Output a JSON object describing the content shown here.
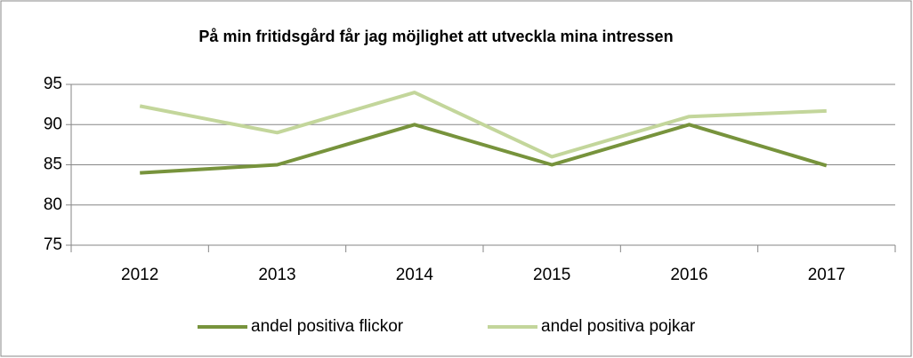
{
  "chart_data": {
    "type": "line",
    "title": "På min fritidsgård får jag möjlighet att utveckla mina intressen",
    "categories": [
      "2012",
      "2013",
      "2014",
      "2015",
      "2016",
      "2017"
    ],
    "series": [
      {
        "name": "andel positiva flickor",
        "color": "#77933c",
        "values": [
          84,
          85,
          90,
          85,
          90,
          84.9
        ]
      },
      {
        "name": "andel positiva pojkar",
        "color": "#c3d69b",
        "values": [
          92.3,
          89,
          94,
          86,
          91,
          91.7
        ]
      }
    ],
    "ylim": [
      75,
      95
    ],
    "yticks": [
      75,
      80,
      85,
      90,
      95
    ],
    "grid": true,
    "legend": "bottom"
  }
}
